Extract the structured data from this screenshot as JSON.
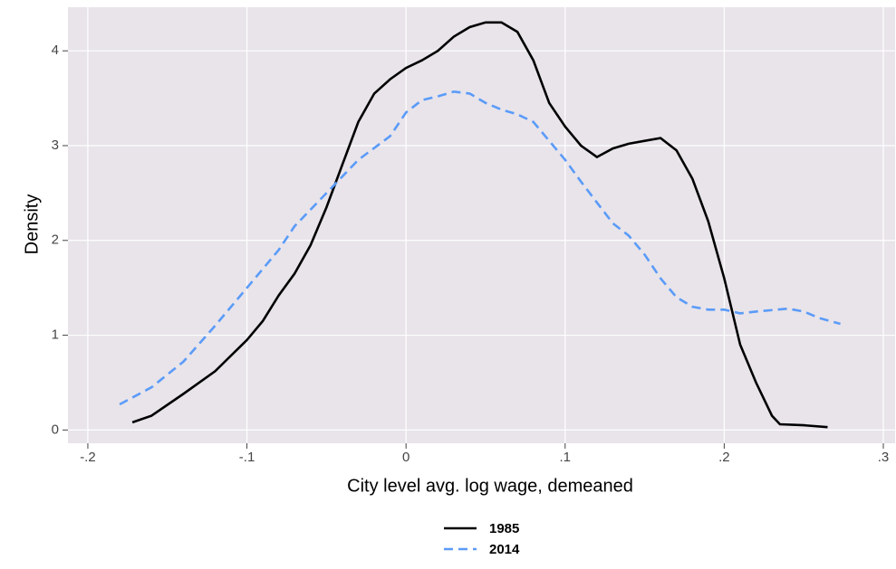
{
  "chart_data": {
    "type": "line",
    "xlabel": "City level avg. log wage, demeaned",
    "ylabel": "Density",
    "xlim": [
      -0.2125,
      0.3074
    ],
    "ylim": [
      -0.14,
      4.46
    ],
    "xticks": [
      {
        "value": -0.2,
        "label": "-.2"
      },
      {
        "value": -0.1,
        "label": "-.1"
      },
      0,
      {
        "value": 0.1,
        "label": ".1"
      },
      {
        "value": 0.2,
        "label": ".2"
      },
      {
        "value": 0.3,
        "label": ".3"
      }
    ],
    "yticks": [
      0,
      1,
      2,
      3,
      4
    ],
    "grid": true,
    "legend": "bottom",
    "series": [
      {
        "name": "1985",
        "color": "#000000",
        "line_style": "solid",
        "x": [
          -0.172,
          -0.16,
          -0.14,
          -0.12,
          -0.1,
          -0.09,
          -0.08,
          -0.07,
          -0.06,
          -0.05,
          -0.04,
          -0.03,
          -0.02,
          -0.01,
          0,
          0.01,
          0.02,
          0.03,
          0.04,
          0.05,
          0.06,
          0.07,
          0.08,
          0.09,
          0.1,
          0.11,
          0.12,
          0.13,
          0.14,
          0.15,
          0.16,
          0.17,
          0.18,
          0.19,
          0.2,
          0.21,
          0.22,
          0.23,
          0.235,
          0.25,
          0.265
        ],
        "values": [
          0.08,
          0.15,
          0.38,
          0.62,
          0.95,
          1.15,
          1.42,
          1.65,
          1.95,
          2.35,
          2.8,
          3.25,
          3.55,
          3.7,
          3.82,
          3.9,
          4.0,
          4.15,
          4.25,
          4.3,
          4.3,
          4.2,
          3.9,
          3.45,
          3.2,
          3.0,
          2.88,
          2.97,
          3.02,
          3.05,
          3.08,
          2.95,
          2.65,
          2.2,
          1.6,
          0.9,
          0.5,
          0.15,
          0.06,
          0.05,
          0.03
        ]
      },
      {
        "name": "2014",
        "color": "#5b9bf8",
        "line_style": "dashed",
        "x": [
          -0.18,
          -0.16,
          -0.14,
          -0.12,
          -0.1,
          -0.08,
          -0.07,
          -0.05,
          -0.03,
          -0.01,
          0,
          0.01,
          0.02,
          0.03,
          0.04,
          0.05,
          0.06,
          0.07,
          0.08,
          0.09,
          0.1,
          0.11,
          0.12,
          0.13,
          0.14,
          0.15,
          0.16,
          0.17,
          0.18,
          0.19,
          0.2,
          0.21,
          0.22,
          0.24,
          0.25,
          0.26,
          0.273
        ],
        "values": [
          0.27,
          0.45,
          0.72,
          1.1,
          1.5,
          1.9,
          2.15,
          2.5,
          2.85,
          3.1,
          3.35,
          3.48,
          3.52,
          3.57,
          3.55,
          3.45,
          3.38,
          3.33,
          3.25,
          3.05,
          2.85,
          2.62,
          2.4,
          2.18,
          2.05,
          1.85,
          1.6,
          1.4,
          1.3,
          1.27,
          1.27,
          1.23,
          1.25,
          1.28,
          1.25,
          1.18,
          1.12
        ]
      }
    ]
  }
}
